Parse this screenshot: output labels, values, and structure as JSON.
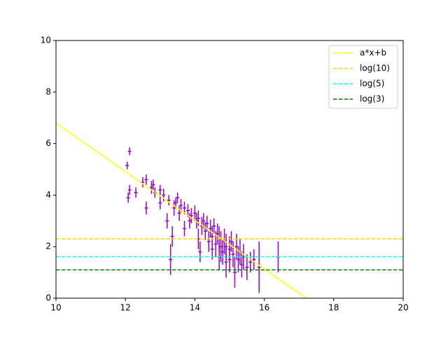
{
  "chart_data": {
    "type": "errorbar",
    "xlim": [
      10,
      20
    ],
    "ylim": [
      0,
      10
    ],
    "xticks": [
      10,
      12,
      14,
      16,
      18,
      20
    ],
    "yticks": [
      0,
      2,
      4,
      6,
      8,
      10
    ],
    "legend": "upper right",
    "points": {
      "color": "#9400d3",
      "xerr": 0.05,
      "x": [
        12.05,
        12.12,
        12.08,
        12.12,
        12.3,
        12.5,
        12.6,
        12.6,
        12.75,
        12.8,
        12.85,
        13.0,
        13.0,
        13.1,
        13.2,
        13.25,
        13.3,
        13.35,
        13.4,
        13.45,
        13.5,
        13.55,
        13.6,
        13.7,
        13.7,
        13.8,
        13.85,
        13.9,
        14.0,
        14.05,
        14.1,
        14.1,
        14.15,
        14.2,
        14.25,
        14.3,
        14.35,
        14.4,
        14.45,
        14.5,
        14.5,
        14.55,
        14.6,
        14.65,
        14.7,
        14.7,
        14.75,
        14.8,
        14.85,
        14.9,
        14.9,
        15.0,
        15.0,
        15.05,
        15.1,
        15.15,
        15.2,
        15.25,
        15.3,
        15.35,
        15.4,
        15.5,
        15.6,
        15.7,
        15.85,
        16.4
      ],
      "values": [
        5.15,
        5.7,
        3.9,
        4.2,
        4.1,
        4.5,
        3.5,
        4.6,
        4.3,
        4.4,
        4.1,
        4.2,
        3.7,
        4.0,
        3.0,
        3.8,
        1.5,
        2.4,
        3.5,
        3.7,
        3.9,
        3.3,
        3.6,
        2.7,
        3.5,
        3.4,
        3.0,
        3.2,
        3.3,
        3.0,
        2.3,
        3.1,
        1.8,
        2.8,
        3.0,
        2.6,
        2.9,
        2.2,
        2.7,
        2.4,
        1.9,
        2.8,
        2.1,
        2.5,
        1.6,
        2.3,
        2.0,
        1.8,
        2.2,
        1.4,
        2.0,
        1.9,
        1.5,
        2.2,
        1.7,
        1.0,
        2.0,
        1.5,
        1.8,
        1.3,
        1.6,
        1.2,
        1.4,
        1.5,
        1.2,
        1.6
      ],
      "yerr": [
        0.15,
        0.15,
        0.2,
        0.2,
        0.2,
        0.2,
        0.25,
        0.2,
        0.25,
        0.2,
        0.2,
        0.2,
        0.25,
        0.25,
        0.3,
        0.2,
        0.6,
        0.4,
        0.3,
        0.2,
        0.2,
        0.3,
        0.25,
        0.3,
        0.25,
        0.25,
        0.3,
        0.3,
        0.3,
        0.3,
        0.4,
        0.3,
        0.4,
        0.35,
        0.3,
        0.35,
        0.3,
        0.4,
        0.35,
        0.4,
        0.4,
        0.3,
        0.5,
        0.4,
        0.5,
        0.5,
        0.6,
        0.5,
        0.5,
        0.6,
        0.5,
        0.5,
        0.5,
        0.4,
        0.5,
        0.6,
        0.5,
        0.5,
        0.5,
        0.5,
        0.5,
        0.5,
        0.4,
        0.4,
        1.0,
        0.6
      ]
    },
    "series": [
      {
        "name": "a*x+b",
        "color": "#ffff00",
        "dash": false,
        "x": [
          10,
          17.2
        ],
        "values": [
          6.8,
          0
        ]
      },
      {
        "name": "log(10)",
        "color": "#ffd700",
        "dash": true,
        "x": [
          10,
          20
        ],
        "values": [
          2.303,
          2.303
        ]
      },
      {
        "name": "log(5)",
        "color": "#00ffff",
        "dash": true,
        "x": [
          10,
          20
        ],
        "values": [
          1.609,
          1.609
        ]
      },
      {
        "name": "log(3)",
        "color": "#008000",
        "dash": true,
        "x": [
          10,
          20
        ],
        "values": [
          1.099,
          1.099
        ]
      }
    ]
  }
}
